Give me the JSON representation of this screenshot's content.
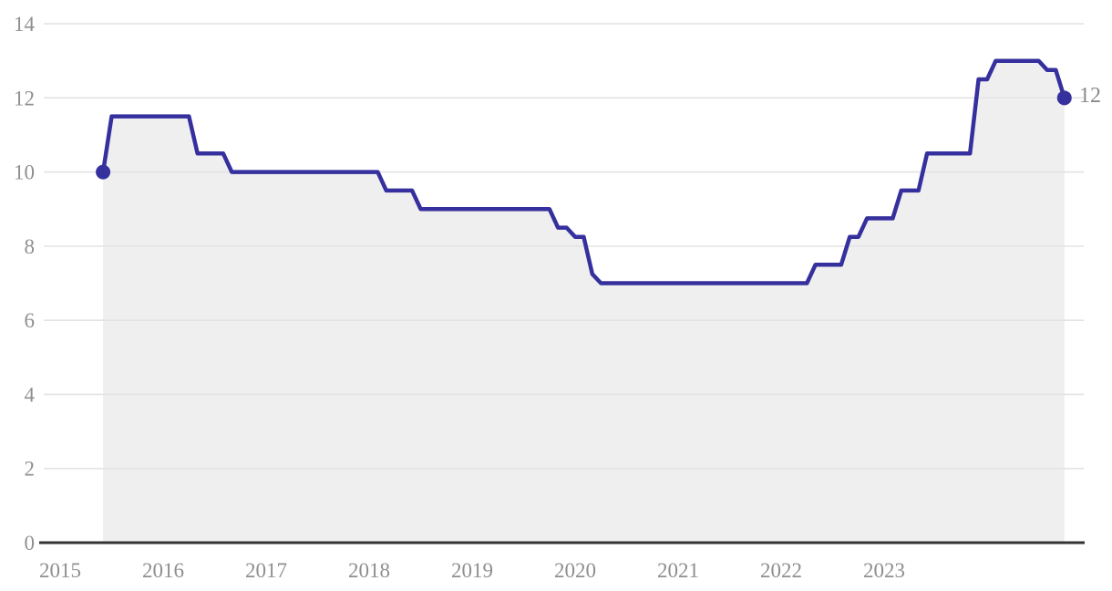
{
  "chart_data": {
    "type": "area",
    "title": "",
    "xlabel": "",
    "ylabel": "",
    "grid": "horizontal",
    "legend": "none",
    "ylim": [
      0,
      14
    ],
    "y_ticks": [
      0,
      2,
      4,
      6,
      8,
      10,
      12,
      14
    ],
    "x_tick_labels": [
      "2015",
      "2016",
      "2017",
      "2018",
      "2019",
      "2020",
      "2021",
      "2022",
      "2023"
    ],
    "xlim_months": [
      "2015-01",
      "2024-12"
    ],
    "points": [
      [
        "2015-06",
        10.0
      ],
      [
        "2015-07",
        11.5
      ],
      [
        "2016-04",
        11.5
      ],
      [
        "2016-05",
        10.5
      ],
      [
        "2016-08",
        10.5
      ],
      [
        "2016-09",
        10.0
      ],
      [
        "2018-02",
        10.0
      ],
      [
        "2018-03",
        9.5
      ],
      [
        "2018-06",
        9.5
      ],
      [
        "2018-07",
        9.0
      ],
      [
        "2019-10",
        9.0
      ],
      [
        "2019-11",
        8.5
      ],
      [
        "2019-12",
        8.5
      ],
      [
        "2020-01",
        8.25
      ],
      [
        "2020-02",
        8.25
      ],
      [
        "2020-03",
        7.25
      ],
      [
        "2020-04",
        7.0
      ],
      [
        "2022-04",
        7.0
      ],
      [
        "2022-05",
        7.5
      ],
      [
        "2022-08",
        7.5
      ],
      [
        "2022-09",
        8.25
      ],
      [
        "2022-10",
        8.25
      ],
      [
        "2022-11",
        8.75
      ],
      [
        "2023-02",
        8.75
      ],
      [
        "2023-03",
        9.5
      ],
      [
        "2023-05",
        9.5
      ],
      [
        "2023-06",
        10.5
      ],
      [
        "2023-11",
        10.5
      ],
      [
        "2023-12",
        12.5
      ],
      [
        "2024-01",
        12.5
      ],
      [
        "2024-02",
        13.0
      ],
      [
        "2024-07",
        13.0
      ],
      [
        "2024-08",
        12.75
      ],
      [
        "2024-09",
        12.75
      ],
      [
        "2024-10",
        12.0
      ]
    ],
    "markers": {
      "start": {
        "x": "2015-06",
        "value": 10.0
      },
      "end": {
        "x": "2024-10",
        "value": 12.0
      }
    },
    "end_label": "12",
    "colors": {
      "line": "#36309E",
      "marker": "#36309E",
      "area_fill": "#EFEFEF",
      "gridline": "#E3E3E3",
      "axis_line": "#333333",
      "tick_label": "#8F8F8F",
      "end_label": "#8A8A8A",
      "background": "#FFFFFF"
    }
  }
}
